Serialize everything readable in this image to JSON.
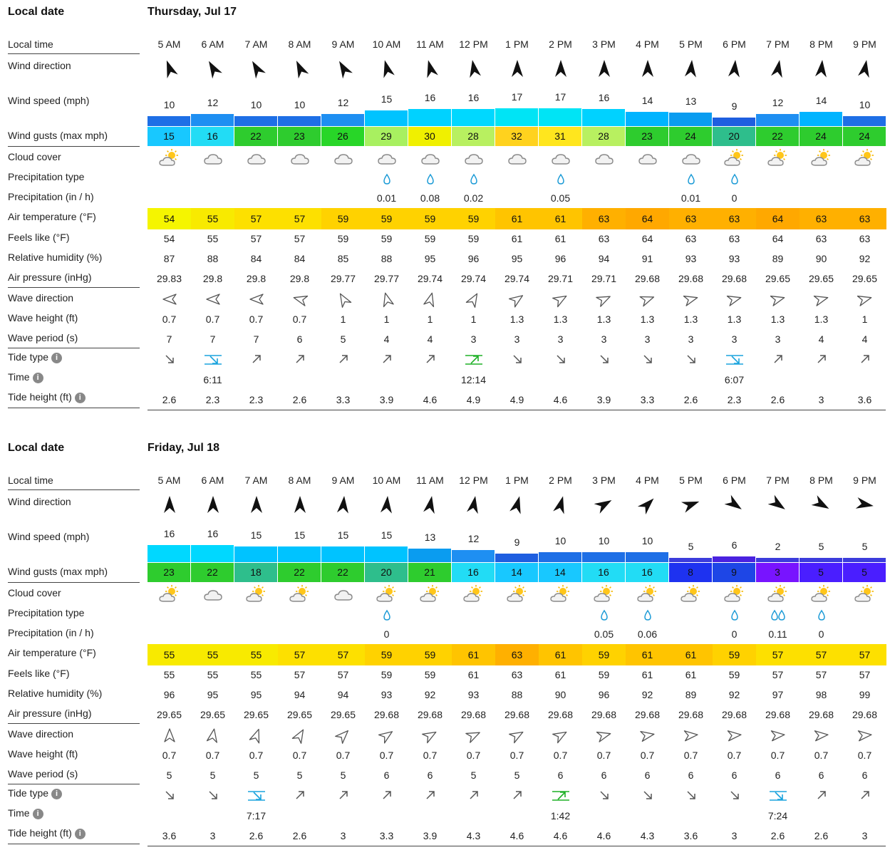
{
  "labels": {
    "local_date": "Local date",
    "local_time": "Local time",
    "wind_direction": "Wind direction",
    "wind_speed": "Wind speed (mph)",
    "wind_gusts": "Wind gusts (max mph)",
    "cloud_cover": "Cloud cover",
    "precip_type": "Precipitation type",
    "precip": "Precipitation (in / h)",
    "air_temp": "Air temperature (°F)",
    "feels_like": "Feels like (°F)",
    "humidity": "Relative humidity (%)",
    "pressure": "Air pressure (inHg)",
    "wave_direction": "Wave direction",
    "wave_height": "Wave height (ft)",
    "wave_period": "Wave period (s)",
    "tide_type": "Tide type",
    "time": "Time",
    "tide_height": "Tide height (ft)",
    "info_glyph": "i"
  },
  "days": [
    {
      "date": "Thursday, Jul 17",
      "hours": [
        "5 AM",
        "6 AM",
        "7 AM",
        "8 AM",
        "9 AM",
        "10 AM",
        "11 AM",
        "12 PM",
        "1 PM",
        "2 PM",
        "3 PM",
        "4 PM",
        "5 PM",
        "6 PM",
        "7 PM",
        "8 PM",
        "9 PM"
      ],
      "wind_dir_deg": [
        340,
        330,
        330,
        335,
        330,
        345,
        345,
        350,
        0,
        0,
        0,
        0,
        5,
        5,
        10,
        5,
        10
      ],
      "wind_speed": [
        "10",
        "12",
        "10",
        "10",
        "12",
        "15",
        "16",
        "16",
        "17",
        "17",
        "16",
        "14",
        "13",
        "9",
        "12",
        "14",
        "10"
      ],
      "wind_speed_color": [
        "#1e6fe6",
        "#1e8ff2",
        "#1e6fe6",
        "#1e6fe6",
        "#1e8ff2",
        "#00c3ff",
        "#00d2ff",
        "#00d8ff",
        "#00e4f5",
        "#00e4f5",
        "#00d2ff",
        "#00b4ff",
        "#0a9cf0",
        "#1e5ee0",
        "#1e8ff2",
        "#00b4ff",
        "#1e6fe6"
      ],
      "gusts": [
        "15",
        "16",
        "22",
        "23",
        "26",
        "29",
        "30",
        "28",
        "32",
        "31",
        "28",
        "23",
        "24",
        "20",
        "22",
        "24",
        "24"
      ],
      "gust_color": [
        "#18c8ff",
        "#22dcf5",
        "#2ecc2e",
        "#2ecc2e",
        "#28d628",
        "#a8f060",
        "#f0f000",
        "#b8f060",
        "#ffd21e",
        "#ffe61e",
        "#b8f060",
        "#2ecc2e",
        "#2ecc2e",
        "#2ebe8c",
        "#2ecc2e",
        "#2ecc2e",
        "#2ecc2e"
      ],
      "cloud": [
        "sun-cloud",
        "cloud",
        "cloud",
        "cloud",
        "cloud",
        "cloud",
        "cloud",
        "cloud",
        "cloud",
        "cloud",
        "cloud",
        "cloud",
        "cloud",
        "sun-cloud",
        "sun-cloud",
        "sun-cloud",
        "sun-cloud"
      ],
      "precip_type": [
        "",
        "",
        "",
        "",
        "",
        "drop",
        "drop",
        "drop",
        "",
        "drop",
        "",
        "",
        "drop",
        "drop",
        "",
        "",
        ""
      ],
      "precip": [
        "",
        "",
        "",
        "",
        "",
        "0.01",
        "0.08",
        "0.02",
        "",
        "0.05",
        "",
        "",
        "0.01",
        "0",
        "",
        "",
        ""
      ],
      "air_temp": [
        "54",
        "55",
        "57",
        "57",
        "59",
        "59",
        "59",
        "59",
        "61",
        "61",
        "63",
        "64",
        "63",
        "63",
        "64",
        "63",
        "63"
      ],
      "air_temp_color": [
        "#f5f500",
        "#f8ea00",
        "#fde000",
        "#fde000",
        "#ffd200",
        "#ffd200",
        "#ffd200",
        "#ffd200",
        "#ffc400",
        "#ffc400",
        "#ffb000",
        "#ffa800",
        "#ffb000",
        "#ffb000",
        "#ffa800",
        "#ffb000",
        "#ffb000"
      ],
      "feels_like": [
        "54",
        "55",
        "57",
        "57",
        "59",
        "59",
        "59",
        "59",
        "61",
        "61",
        "63",
        "64",
        "63",
        "63",
        "64",
        "63",
        "63"
      ],
      "humidity": [
        "87",
        "88",
        "84",
        "84",
        "85",
        "88",
        "95",
        "96",
        "95",
        "96",
        "94",
        "91",
        "93",
        "93",
        "89",
        "90",
        "92"
      ],
      "pressure": [
        "29.83",
        "29.8",
        "29.8",
        "29.8",
        "29.77",
        "29.77",
        "29.74",
        "29.74",
        "29.74",
        "29.71",
        "29.71",
        "29.68",
        "29.68",
        "29.68",
        "29.65",
        "29.65",
        "29.65"
      ],
      "wave_dir_deg": [
        270,
        270,
        270,
        285,
        330,
        345,
        15,
        30,
        55,
        60,
        65,
        70,
        75,
        75,
        75,
        75,
        75
      ],
      "wave_height": [
        "0.7",
        "0.7",
        "0.7",
        "0.7",
        "1",
        "1",
        "1",
        "1",
        "1.3",
        "1.3",
        "1.3",
        "1.3",
        "1.3",
        "1.3",
        "1.3",
        "1.3",
        "1"
      ],
      "wave_period": [
        "7",
        "7",
        "7",
        "6",
        "5",
        "4",
        "4",
        "3",
        "3",
        "3",
        "3",
        "3",
        "3",
        "3",
        "3",
        "4",
        "4"
      ],
      "tide_type": [
        "down",
        "low",
        "up",
        "up",
        "up",
        "up",
        "up",
        "high",
        "down",
        "down",
        "down",
        "down",
        "down",
        "low",
        "up",
        "up",
        "up"
      ],
      "tide_time": [
        "",
        "6:11",
        "",
        "",
        "",
        "",
        "",
        "12:14",
        "",
        "",
        "",
        "",
        "",
        "6:07",
        "",
        "",
        ""
      ],
      "tide_height": [
        "2.6",
        "2.3",
        "2.3",
        "2.6",
        "3.3",
        "3.9",
        "4.6",
        "4.9",
        "4.9",
        "4.6",
        "3.9",
        "3.3",
        "2.6",
        "2.3",
        "2.6",
        "3",
        "3.6"
      ]
    },
    {
      "date": "Friday, Jul 18",
      "hours": [
        "5 AM",
        "6 AM",
        "7 AM",
        "8 AM",
        "9 AM",
        "10 AM",
        "11 AM",
        "12 PM",
        "1 PM",
        "2 PM",
        "3 PM",
        "4 PM",
        "5 PM",
        "6 PM",
        "7 PM",
        "8 PM",
        "9 PM"
      ],
      "wind_dir_deg": [
        0,
        0,
        0,
        0,
        5,
        5,
        10,
        10,
        15,
        15,
        60,
        45,
        70,
        125,
        125,
        120,
        100
      ],
      "wind_speed": [
        "16",
        "16",
        "15",
        "15",
        "15",
        "15",
        "13",
        "12",
        "9",
        "10",
        "10",
        "10",
        "5",
        "6",
        "2",
        "5",
        "5"
      ],
      "wind_speed_color": [
        "#00d8ff",
        "#00d8ff",
        "#00c3ff",
        "#00c3ff",
        "#00c3ff",
        "#00c3ff",
        "#0a9cf0",
        "#1e8ff2",
        "#1e5ee0",
        "#1e6fe6",
        "#1e6fe6",
        "#1e6fe6",
        "#3c3cdc",
        "#4a22e0",
        "#3c3cdc",
        "#3c3cdc",
        "#3c3cdc"
      ],
      "gusts": [
        "23",
        "22",
        "18",
        "22",
        "22",
        "20",
        "21",
        "16",
        "14",
        "14",
        "16",
        "16",
        "8",
        "9",
        "3",
        "5",
        "5"
      ],
      "gust_color": [
        "#2ecc2e",
        "#2ecc2e",
        "#2ebe8c",
        "#2ecc2e",
        "#2ecc2e",
        "#2ebe8c",
        "#2ecc2e",
        "#22dcf5",
        "#18c8ff",
        "#18c8ff",
        "#22dcf5",
        "#22dcf5",
        "#1e32f0",
        "#1e46e6",
        "#7814ff",
        "#4a1eff",
        "#4a1eff"
      ],
      "cloud": [
        "sun-cloud",
        "cloud",
        "sun-cloud",
        "sun-cloud",
        "cloud",
        "sun-cloud",
        "sun-cloud",
        "sun-cloud",
        "sun-cloud",
        "sun-cloud",
        "sun-cloud",
        "sun-cloud",
        "sun-cloud",
        "sun-cloud",
        "sun-cloud",
        "sun-cloud",
        "sun-cloud"
      ],
      "precip_type": [
        "",
        "",
        "",
        "",
        "",
        "drop",
        "",
        "",
        "",
        "",
        "drop",
        "drop",
        "",
        "drop",
        "drops",
        "drop",
        ""
      ],
      "precip": [
        "",
        "",
        "",
        "",
        "",
        "0",
        "",
        "",
        "",
        "",
        "0.05",
        "0.06",
        "",
        "0",
        "0.11",
        "0",
        ""
      ],
      "air_temp": [
        "55",
        "55",
        "55",
        "57",
        "57",
        "59",
        "59",
        "61",
        "63",
        "61",
        "59",
        "61",
        "61",
        "59",
        "57",
        "57",
        "57"
      ],
      "air_temp_color": [
        "#f8ea00",
        "#f8ea00",
        "#f8ea00",
        "#fde000",
        "#fde000",
        "#ffd200",
        "#ffd200",
        "#ffc400",
        "#ffb000",
        "#ffc400",
        "#ffd200",
        "#ffc400",
        "#ffc400",
        "#ffd200",
        "#fde000",
        "#fde000",
        "#fde000"
      ],
      "feels_like": [
        "55",
        "55",
        "55",
        "57",
        "57",
        "59",
        "59",
        "61",
        "63",
        "61",
        "59",
        "61",
        "61",
        "59",
        "57",
        "57",
        "57"
      ],
      "humidity": [
        "96",
        "95",
        "95",
        "94",
        "94",
        "93",
        "92",
        "93",
        "88",
        "90",
        "96",
        "92",
        "89",
        "92",
        "97",
        "98",
        "99"
      ],
      "pressure": [
        "29.65",
        "29.65",
        "29.65",
        "29.65",
        "29.65",
        "29.68",
        "29.68",
        "29.68",
        "29.68",
        "29.68",
        "29.68",
        "29.68",
        "29.68",
        "29.68",
        "29.68",
        "29.68",
        "29.68"
      ],
      "wave_dir_deg": [
        0,
        10,
        20,
        30,
        45,
        55,
        60,
        65,
        60,
        60,
        75,
        80,
        85,
        85,
        85,
        85,
        85
      ],
      "wave_height": [
        "0.7",
        "0.7",
        "0.7",
        "0.7",
        "0.7",
        "0.7",
        "0.7",
        "0.7",
        "0.7",
        "0.7",
        "0.7",
        "0.7",
        "0.7",
        "0.7",
        "0.7",
        "0.7",
        "0.7"
      ],
      "wave_period": [
        "5",
        "5",
        "5",
        "5",
        "5",
        "6",
        "6",
        "5",
        "5",
        "6",
        "6",
        "6",
        "6",
        "6",
        "6",
        "6",
        "6"
      ],
      "tide_type": [
        "down",
        "down",
        "low",
        "up",
        "up",
        "up",
        "up",
        "up",
        "up",
        "high",
        "down",
        "down",
        "down",
        "down",
        "low",
        "up",
        "up"
      ],
      "tide_time": [
        "",
        "",
        "7:17",
        "",
        "",
        "",
        "",
        "",
        "",
        "1:42",
        "",
        "",
        "",
        "",
        "7:24",
        "",
        ""
      ],
      "tide_height": [
        "3.6",
        "3",
        "2.6",
        "2.6",
        "3",
        "3.3",
        "3.9",
        "4.3",
        "4.6",
        "4.6",
        "4.6",
        "4.3",
        "3.6",
        "3",
        "2.6",
        "2.6",
        "3"
      ]
    }
  ]
}
